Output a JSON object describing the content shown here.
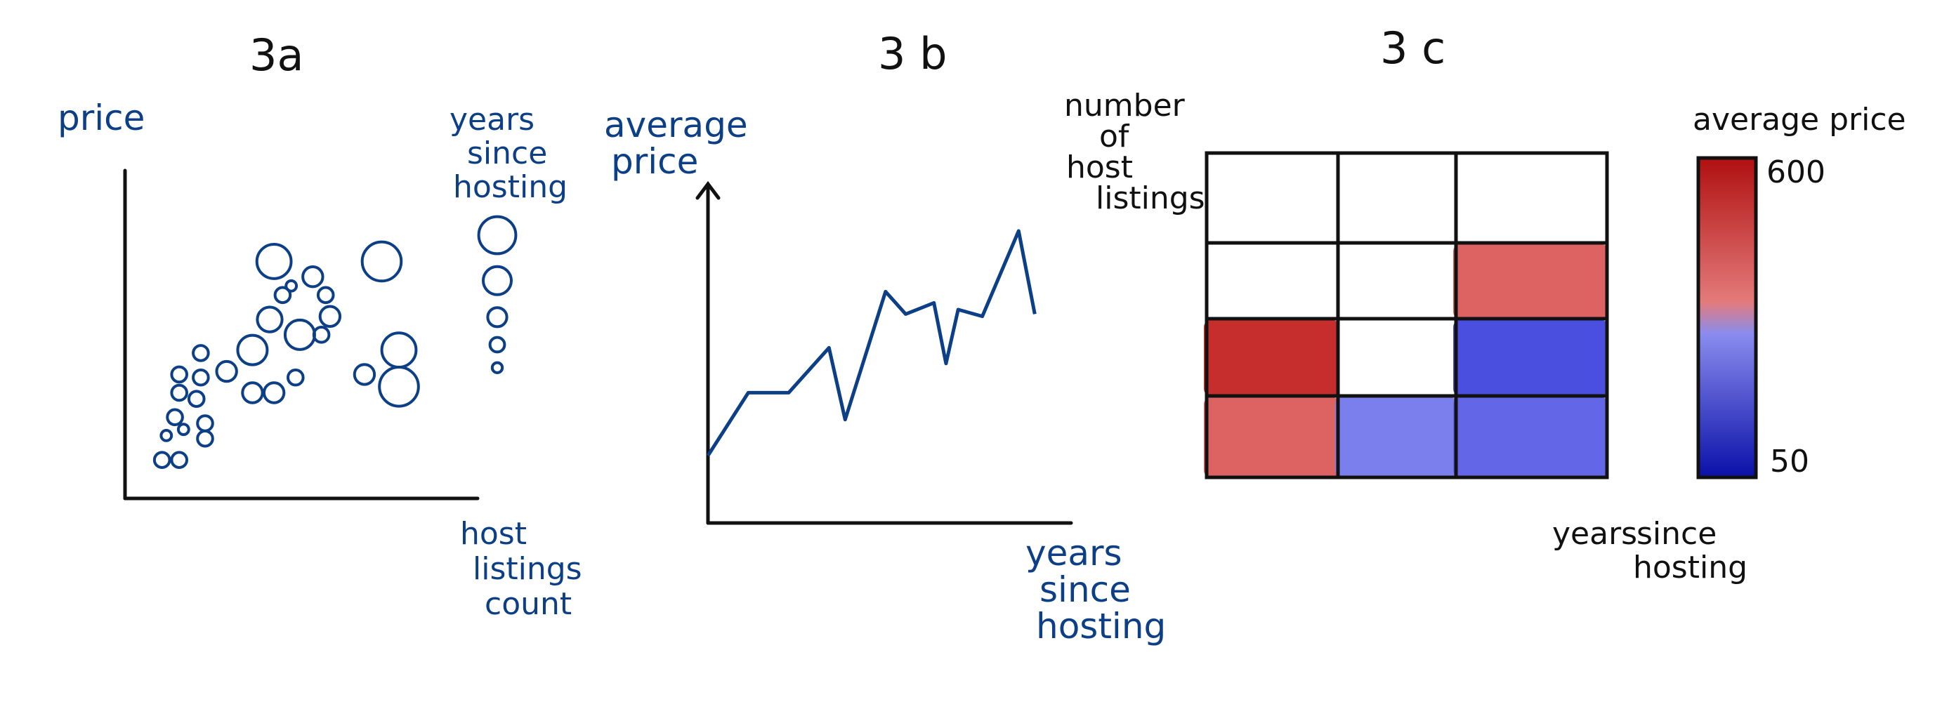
{
  "chart_data": [
    {
      "type": "scatter",
      "title": "3a",
      "xlabel": "host listings count",
      "ylabel": "price",
      "size_label": "years since hosting",
      "points": [
        {
          "x": 0.5,
          "y": 0.08,
          "size": 2
        },
        {
          "x": 0.9,
          "y": 0.08,
          "size": 2
        },
        {
          "x": 0.6,
          "y": 0.16,
          "size": 1
        },
        {
          "x": 1.0,
          "y": 0.18,
          "size": 1
        },
        {
          "x": 1.5,
          "y": 0.15,
          "size": 2
        },
        {
          "x": 1.5,
          "y": 0.2,
          "size": 2
        },
        {
          "x": 0.8,
          "y": 0.22,
          "size": 2
        },
        {
          "x": 1.3,
          "y": 0.28,
          "size": 2
        },
        {
          "x": 1.4,
          "y": 0.35,
          "size": 2
        },
        {
          "x": 0.9,
          "y": 0.3,
          "size": 2
        },
        {
          "x": 0.9,
          "y": 0.36,
          "size": 2
        },
        {
          "x": 1.4,
          "y": 0.43,
          "size": 2
        },
        {
          "x": 2.0,
          "y": 0.37,
          "size": 3
        },
        {
          "x": 2.6,
          "y": 0.44,
          "size": 5
        },
        {
          "x": 2.6,
          "y": 0.3,
          "size": 3
        },
        {
          "x": 3.1,
          "y": 0.3,
          "size": 3
        },
        {
          "x": 3.6,
          "y": 0.35,
          "size": 2
        },
        {
          "x": 4.2,
          "y": 0.49,
          "size": 2
        },
        {
          "x": 3.0,
          "y": 0.54,
          "size": 4
        },
        {
          "x": 3.7,
          "y": 0.49,
          "size": 5
        },
        {
          "x": 3.3,
          "y": 0.62,
          "size": 2
        },
        {
          "x": 4.4,
          "y": 0.55,
          "size": 3
        },
        {
          "x": 3.5,
          "y": 0.65,
          "size": 1
        },
        {
          "x": 4.3,
          "y": 0.62,
          "size": 2
        },
        {
          "x": 5.2,
          "y": 0.36,
          "size": 3
        },
        {
          "x": 6.0,
          "y": 0.44,
          "size": 6
        },
        {
          "x": 6.0,
          "y": 0.32,
          "size": 7
        },
        {
          "x": 3.1,
          "y": 0.73,
          "size": 6
        },
        {
          "x": 4.0,
          "y": 0.68,
          "size": 3
        },
        {
          "x": 5.6,
          "y": 0.73,
          "size": 7
        }
      ],
      "xlim": [
        0,
        7.5
      ],
      "ylim": [
        0,
        1
      ],
      "size_legend": [
        7,
        5,
        3,
        2,
        1
      ]
    },
    {
      "type": "line",
      "title": "3 b",
      "xlabel": "years since hosting",
      "ylabel": "average price",
      "x": [
        0,
        1,
        2,
        3,
        3.4,
        4.4,
        4.9,
        5.6,
        5.9,
        6.2,
        6.8,
        7.7,
        8.1
      ],
      "y": [
        0.0,
        0.28,
        0.28,
        0.48,
        0.16,
        0.73,
        0.63,
        0.68,
        0.41,
        0.65,
        0.62,
        1.0,
        0.63
      ],
      "xlim": [
        0,
        9
      ],
      "ylim": [
        -0.3,
        1.2
      ]
    },
    {
      "type": "heatmap",
      "title": "3 c",
      "xlabel": "years since hosting",
      "ylabel": "number of host listings",
      "colorbar_label": "average price",
      "colorbar_range": [
        50,
        600
      ],
      "colorbar_ticks": [
        "600",
        "50"
      ],
      "cols": 3,
      "rows": 4,
      "cells": [
        [
          null,
          null,
          null
        ],
        [
          null,
          null,
          400
        ],
        [
          550,
          null,
          120
        ],
        [
          400,
          220,
          170
        ]
      ]
    }
  ]
}
